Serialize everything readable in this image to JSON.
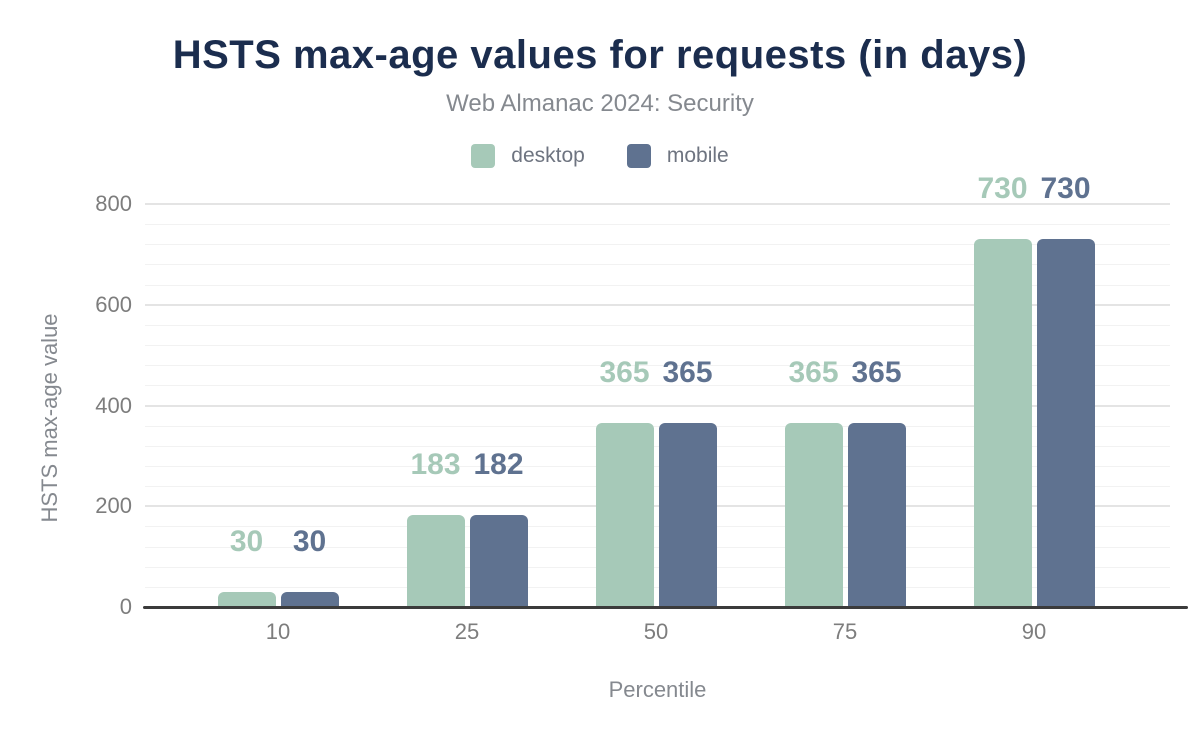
{
  "chart_data": {
    "type": "bar",
    "title": "HSTS max-age values for requests (in days)",
    "subtitle": "Web Almanac 2024: Security",
    "xlabel": "Percentile",
    "ylabel": "HSTS max-age value",
    "categories": [
      "10",
      "25",
      "50",
      "75",
      "90"
    ],
    "series": [
      {
        "name": "desktop",
        "color": "#a6c9b8",
        "values": [
          30,
          183,
          365,
          365,
          730
        ]
      },
      {
        "name": "mobile",
        "color": "#5f7290",
        "values": [
          30,
          182,
          365,
          365,
          730
        ]
      }
    ],
    "ylim": [
      0,
      800
    ],
    "yticks": [
      0,
      200,
      400,
      600,
      800
    ],
    "minor_grid_step": 40,
    "grid": true,
    "legend_position": "top",
    "colors": {
      "title": "#1b2d4e",
      "subtitle": "#85898f",
      "tick_label": "#7d7d7d",
      "axis_title": "#85898f",
      "legend_label": "#6e7480",
      "major_grid": "#e4e4e4",
      "minor_grid": "#f2f2f2",
      "axis_line": "#3b3b3b",
      "background": "#ffffff"
    }
  }
}
